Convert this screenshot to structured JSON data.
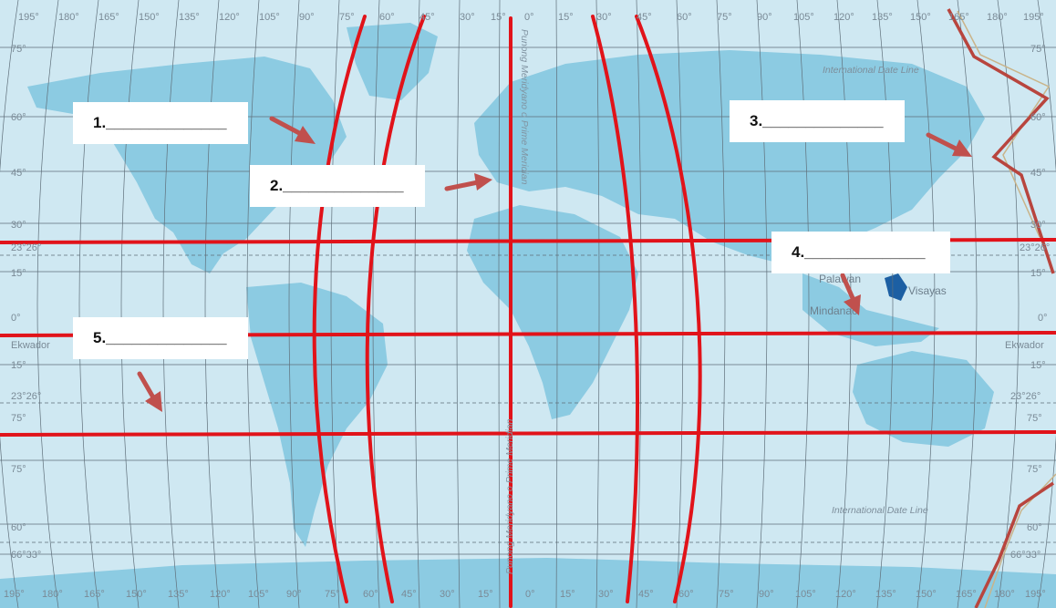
{
  "top_longitudes": [
    "195°",
    "180°",
    "165°",
    "150°",
    "135°",
    "120°",
    "105°",
    "90°",
    "75°",
    "60°",
    "45°",
    "30°",
    "15°",
    "0°",
    "15°",
    "30°",
    "45°",
    "60°",
    "75°",
    "90°",
    "105°",
    "120°",
    "135°",
    "150°",
    "165°",
    "180°",
    "195°"
  ],
  "bottom_longitudes": [
    "195°",
    "180°",
    "165°",
    "150°",
    "135°",
    "120°",
    "105°",
    "90°",
    "75°",
    "60°",
    "45°",
    "30°",
    "15°",
    "0°",
    "15°",
    "30°",
    "45°",
    "60°",
    "75°",
    "90°",
    "105°",
    "120°",
    "135°",
    "150°",
    "165°",
    "180°",
    "195°"
  ],
  "left_latitudes": [
    "75°",
    "60°",
    "45°",
    "30°",
    "23°26°",
    "15°",
    "0°",
    "Ekwador",
    "15°",
    "23°26°",
    "75°",
    "75°",
    "60°",
    "66°33°"
  ],
  "right_latitudes": [
    "75°",
    "60°",
    "45°",
    "30°",
    "23°26°",
    "15°",
    "0°",
    "Ekwador",
    "15°",
    "23°26°",
    "75°",
    "75°",
    "60°",
    "66°33°"
  ],
  "prime_meridian_top": "Punong Meridyano o Prime Meridian",
  "prime_meridian_bottom": "Punong Meridyano o Prime Meridian",
  "idl_top": "International Date Line",
  "idl_bottom": "International Date Line",
  "places": {
    "palawan": "Palawan",
    "visayas": "Visayas",
    "mindanao": "Mindanao"
  },
  "answer_boxes": [
    {
      "label": "1.______________"
    },
    {
      "label": "2.______________"
    },
    {
      "label": "3.______________"
    },
    {
      "label": "4.______________"
    },
    {
      "label": "5.______________"
    }
  ],
  "colors": {
    "ocean": "#cfe8f2",
    "land": "#8ccbe2",
    "grid": "#5f6f7a",
    "red": "#e1131a",
    "arrow": "#c0504d"
  }
}
